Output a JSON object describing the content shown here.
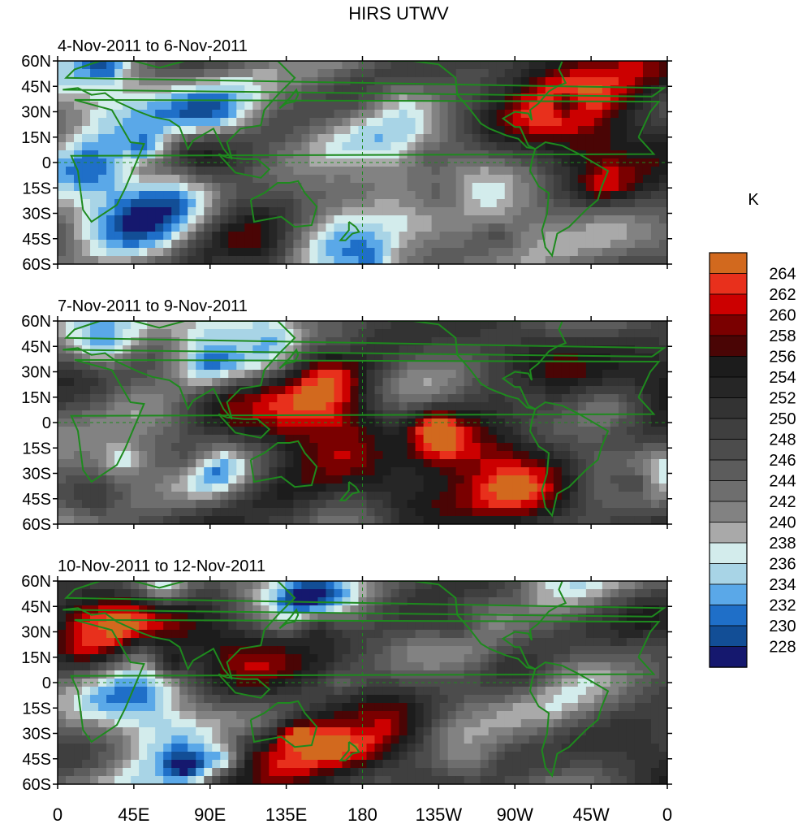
{
  "title": "HIRS UTWV",
  "chart_data": {
    "type": "heatmap",
    "title": "HIRS UTWV",
    "units": "K",
    "panels": [
      {
        "label": "4-Nov-2011 to 6-Nov-2011"
      },
      {
        "label": "7-Nov-2011 to 9-Nov-2011"
      },
      {
        "label": "10-Nov-2011 to 12-Nov-2011"
      }
    ],
    "y_ticks": [
      "60N",
      "45N",
      "30N",
      "15N",
      "0",
      "15S",
      "30S",
      "45S",
      "60S"
    ],
    "y_values": [
      60,
      45,
      30,
      15,
      0,
      -15,
      -30,
      -45,
      -60
    ],
    "x_ticks": [
      "0",
      "45E",
      "90E",
      "135E",
      "180",
      "135W",
      "90W",
      "45W",
      "0"
    ],
    "x_values": [
      0,
      45,
      90,
      135,
      180,
      225,
      270,
      315,
      360
    ],
    "xlim": [
      0,
      360
    ],
    "ylim": [
      -60,
      60
    ],
    "colorbar": {
      "levels": [
        "264",
        "262",
        "260",
        "258",
        "256",
        "254",
        "252",
        "250",
        "248",
        "246",
        "244",
        "242",
        "240",
        "238",
        "236",
        "234",
        "232",
        "230",
        "228"
      ],
      "colors": [
        "#d2691e",
        "#e8301c",
        "#cc0000",
        "#7a0000",
        "#4a0505",
        "#1c1c1c",
        "#262626",
        "#333333",
        "#3f3f3f",
        "#4c4c4c",
        "#5c5c5c",
        "#6e6e6e",
        "#828282",
        "#a9a9a9",
        "#d3ecec",
        "#a8d4e6",
        "#5aa8e8",
        "#1f6fc8",
        "#124e96",
        "#15186e"
      ]
    }
  }
}
